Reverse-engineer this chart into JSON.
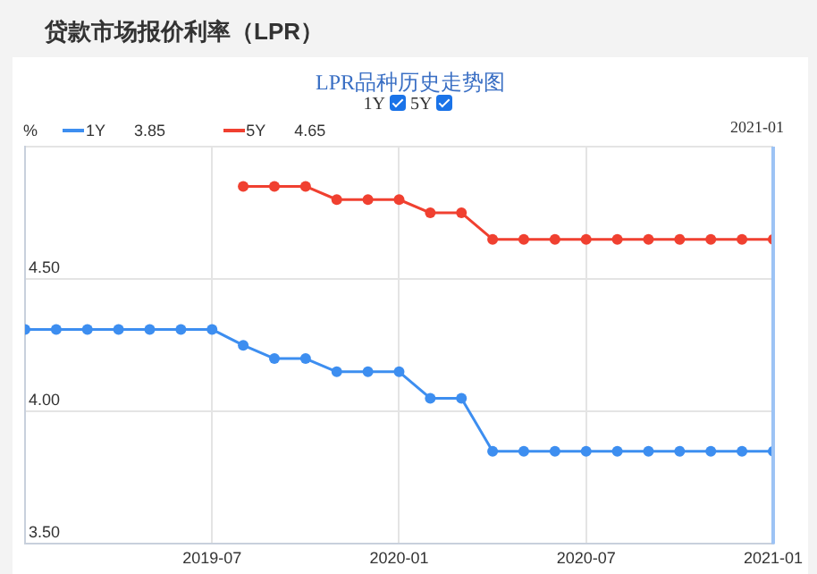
{
  "chart_data": {
    "type": "line",
    "title": "贷款市场报价利率（LPR）",
    "subtitle": "LPR品种历史走势图",
    "ylabel": "%",
    "x": [
      "2019-01",
      "2019-02",
      "2019-03",
      "2019-04",
      "2019-05",
      "2019-06",
      "2019-07",
      "2019-08",
      "2019-09",
      "2019-10",
      "2019-11",
      "2019-12",
      "2020-01",
      "2020-02",
      "2020-03",
      "2020-04",
      "2020-05",
      "2020-06",
      "2020-07",
      "2020-08",
      "2020-09",
      "2020-10",
      "2020-11",
      "2020-12",
      "2021-01"
    ],
    "series": [
      {
        "name": "1Y",
        "color": "#3d8ef0",
        "values": [
          4.31,
          4.31,
          4.31,
          4.31,
          4.31,
          4.31,
          4.31,
          4.25,
          4.2,
          4.2,
          4.15,
          4.15,
          4.15,
          4.05,
          4.05,
          3.85,
          3.85,
          3.85,
          3.85,
          3.85,
          3.85,
          3.85,
          3.85,
          3.85,
          3.85
        ]
      },
      {
        "name": "5Y",
        "color": "#f04030",
        "values": [
          null,
          null,
          null,
          null,
          null,
          null,
          null,
          4.85,
          4.85,
          4.85,
          4.8,
          4.8,
          4.8,
          4.75,
          4.75,
          4.65,
          4.65,
          4.65,
          4.65,
          4.65,
          4.65,
          4.65,
          4.65,
          4.65,
          4.65
        ]
      }
    ],
    "annotations": [
      "3.85",
      "4.65"
    ],
    "ref_lines": [
      {
        "axis": "x",
        "value": "2021-01",
        "label": "2021-01",
        "color": "#9cc3f5"
      }
    ],
    "xlim": [
      "2019-01",
      "2021-01"
    ],
    "xticks": [
      "2019-07",
      "2020-01",
      "2020-07",
      "2021-01"
    ],
    "ylim": [
      3.5,
      5.0
    ],
    "yticks": [
      {
        "value": 3.5,
        "label": "3.50"
      },
      {
        "value": 4.0,
        "label": "4.00"
      },
      {
        "value": 4.5,
        "label": "4.50"
      },
      {
        "value": 5.0,
        "label": null
      }
    ],
    "grid": true,
    "legend": "top left",
    "marker": "circle",
    "line_style": "solid"
  }
}
